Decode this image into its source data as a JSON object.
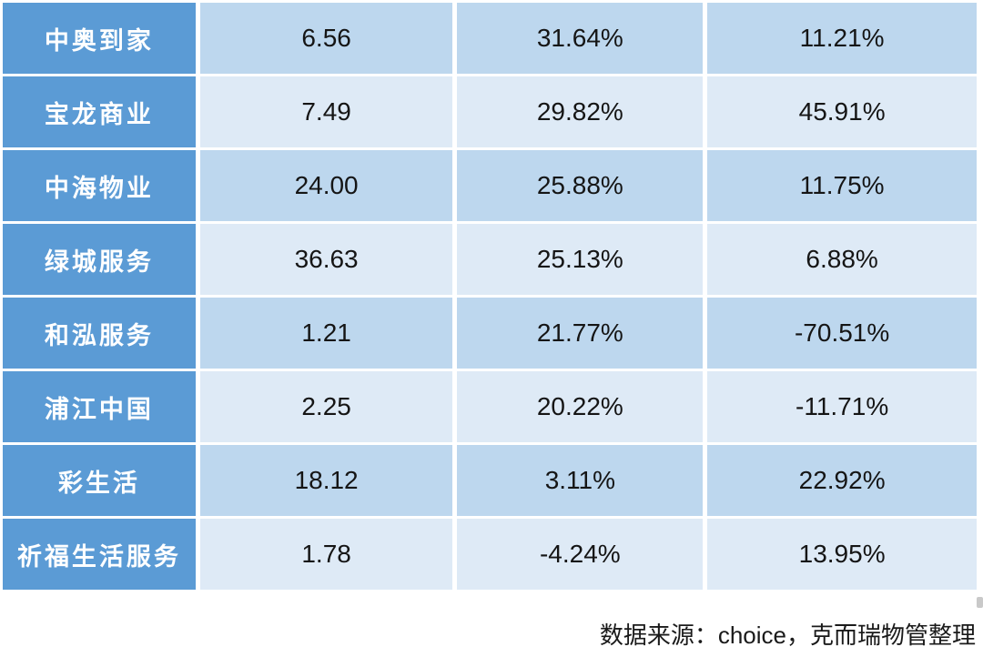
{
  "chart_data": {
    "type": "table",
    "rows": [
      [
        "中奥到家",
        "6.56",
        "31.64%",
        "11.21%"
      ],
      [
        "宝龙商业",
        "7.49",
        "29.82%",
        "45.91%"
      ],
      [
        "中海物业",
        "24.00",
        "25.88%",
        "11.75%"
      ],
      [
        "绿城服务",
        "36.63",
        "25.13%",
        "6.88%"
      ],
      [
        "和泓服务",
        "1.21",
        "21.77%",
        "-70.51%"
      ],
      [
        "浦江中国",
        "2.25",
        "20.22%",
        "-11.71%"
      ],
      [
        "彩生活",
        "18.12",
        "3.11%",
        "22.92%"
      ],
      [
        "祈福生活服务",
        "1.78",
        "-4.24%",
        "13.95%"
      ]
    ],
    "source_note": "数据来源：choice，克而瑞物管整理",
    "layout": "first column is company name on medium blue; three numeric columns with alternating row banding; no header row visible"
  },
  "colors": {
    "name_column_bg": "#5B9BD5",
    "band_dark_bg": "#BDD7EE",
    "band_light_bg": "#DEEAF6",
    "gutter": "#FFFFFF",
    "name_text": "#FFFFFF",
    "value_text": "#151515"
  }
}
